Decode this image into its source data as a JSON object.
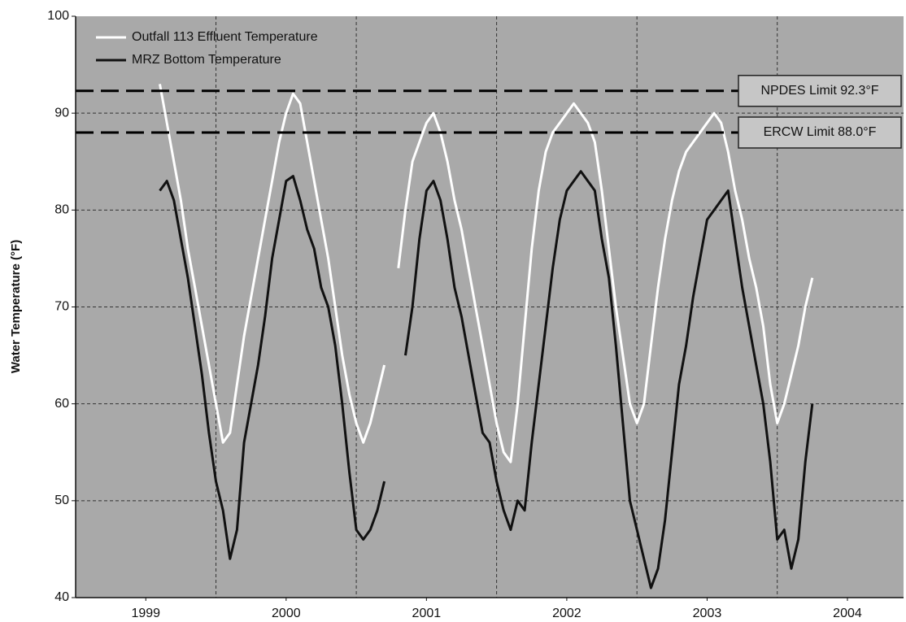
{
  "chart_data": {
    "type": "line",
    "y_label": "Water Temperature (°F)",
    "x": [
      1999.6,
      1999.65,
      1999.7,
      1999.75,
      1999.8,
      1999.85,
      1999.9,
      1999.95,
      2000.0,
      2000.05,
      2000.1,
      2000.15,
      2000.2,
      2000.25,
      2000.3,
      2000.35,
      2000.4,
      2000.45,
      2000.5,
      2000.55,
      2000.6,
      2000.65,
      2000.7,
      2000.75,
      2000.8,
      2000.85,
      2000.9,
      2000.95,
      2001.0,
      2001.05,
      2001.1,
      2001.15,
      2001.2,
      2001.25,
      2001.3,
      2001.35,
      2001.4,
      2001.45,
      2001.5,
      2001.55,
      2001.6,
      2001.65,
      2001.7,
      2001.75,
      2001.8,
      2001.85,
      2001.9,
      2001.95,
      2002.0,
      2002.05,
      2002.1,
      2002.15,
      2002.2,
      2002.25,
      2002.3,
      2002.35,
      2002.4,
      2002.45,
      2002.5,
      2002.55,
      2002.6,
      2002.65,
      2002.7,
      2002.75,
      2002.8,
      2002.85,
      2002.9,
      2002.95,
      2003.0,
      2003.05,
      2003.1,
      2003.15,
      2003.2,
      2003.25,
      2003.3,
      2003.35,
      2003.4,
      2003.45,
      2003.5,
      2003.55,
      2003.6,
      2003.65,
      2003.7,
      2003.75,
      2003.8,
      2003.85,
      2003.9,
      2003.95,
      2004.0,
      2004.05,
      2004.1,
      2004.15,
      2004.2,
      2004.25
    ],
    "series": [
      {
        "name": "Outfall 113 Effluent Temperature",
        "color": "#ffffff",
        "values": [
          93,
          89,
          85,
          81,
          76,
          72,
          68,
          64,
          60,
          56,
          57,
          62,
          67,
          71,
          75,
          79,
          83,
          87,
          90,
          92,
          91,
          87,
          83,
          79,
          75,
          70,
          65,
          61,
          58,
          56,
          58,
          61,
          64,
          null,
          74,
          80,
          85,
          87,
          89,
          90,
          88,
          85,
          81,
          78,
          74,
          70,
          66,
          62,
          58,
          55,
          54,
          60,
          68,
          76,
          82,
          86,
          88,
          89,
          90,
          91,
          90,
          89,
          87,
          82,
          76,
          70,
          65,
          60,
          58,
          60,
          66,
          72,
          77,
          81,
          84,
          86,
          87,
          88,
          89,
          90,
          89,
          86,
          82,
          79,
          75,
          72,
          68,
          62,
          58,
          60,
          63,
          66,
          70,
          73
        ]
      },
      {
        "name": "MRZ Bottom Temperature",
        "color": "#111111",
        "values": [
          82,
          83,
          81,
          77,
          73,
          68,
          63,
          57,
          52,
          49,
          44,
          47,
          56,
          60,
          64,
          69,
          75,
          79,
          83,
          83.5,
          81,
          78,
          76,
          72,
          70,
          66,
          60,
          53,
          47,
          46,
          47,
          49,
          52,
          null,
          null,
          65,
          70,
          77,
          82,
          83,
          81,
          77,
          72,
          69,
          65,
          61,
          57,
          56,
          52,
          49,
          47,
          50,
          49,
          56,
          62,
          68,
          74,
          79,
          82,
          83,
          84,
          83,
          82,
          77,
          73,
          66,
          58,
          50,
          47,
          44,
          41,
          43,
          48,
          55,
          62,
          66,
          71,
          75,
          79,
          80,
          81,
          82,
          77,
          72,
          68,
          64,
          60,
          54,
          46,
          47,
          43,
          46,
          54,
          60
        ]
      }
    ],
    "reference_lines": [
      {
        "value": 92.3,
        "label": "NPDES Limit 92.3°F"
      },
      {
        "value": 88.0,
        "label": "ERCW Limit 88.0°F"
      }
    ],
    "xlim": [
      1999,
      2004.9
    ],
    "xticks": [
      {
        "value": 1999.5,
        "label": "1999"
      },
      {
        "value": 2000.5,
        "label": "2000"
      },
      {
        "value": 2001.5,
        "label": "2001"
      },
      {
        "value": 2002.5,
        "label": "2002"
      },
      {
        "value": 2003.5,
        "label": "2003"
      },
      {
        "value": 2004.5,
        "label": "2004"
      }
    ],
    "xgrid": [
      2000,
      2001,
      2002,
      2003,
      2004
    ],
    "ylim": [
      40,
      100
    ],
    "yticks": [
      40,
      50,
      60,
      70,
      80,
      90,
      100
    ],
    "grid": true,
    "legend": "upper left"
  }
}
